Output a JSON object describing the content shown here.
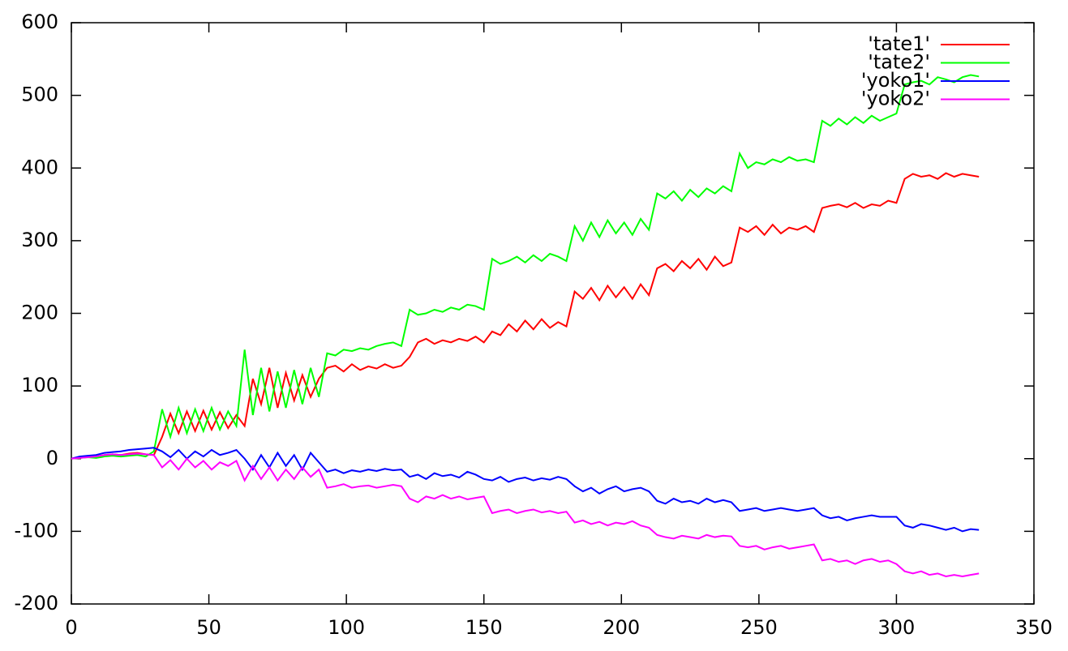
{
  "chart_data": {
    "type": "line",
    "x": [
      0,
      3,
      6,
      9,
      12,
      15,
      18,
      21,
      24,
      27,
      30,
      33,
      36,
      39,
      42,
      45,
      48,
      51,
      54,
      57,
      60,
      63,
      66,
      69,
      72,
      75,
      78,
      81,
      84,
      87,
      90,
      93,
      96,
      99,
      102,
      105,
      108,
      111,
      114,
      117,
      120,
      123,
      126,
      129,
      132,
      135,
      138,
      141,
      144,
      147,
      150,
      153,
      156,
      159,
      162,
      165,
      168,
      171,
      174,
      177,
      180,
      183,
      186,
      189,
      192,
      195,
      198,
      201,
      204,
      207,
      210,
      213,
      216,
      219,
      222,
      225,
      228,
      231,
      234,
      237,
      240,
      243,
      246,
      249,
      252,
      255,
      258,
      261,
      264,
      267,
      270,
      273,
      276,
      279,
      282,
      285,
      288,
      291,
      294,
      297,
      300,
      303,
      306,
      309,
      312,
      315,
      318,
      321,
      324,
      327,
      330
    ],
    "series": [
      {
        "name": "'tate1'",
        "color": "#ff0000",
        "values": [
          0,
          2,
          3,
          3,
          5,
          6,
          5,
          7,
          8,
          6,
          5,
          30,
          62,
          35,
          65,
          38,
          66,
          40,
          64,
          42,
          60,
          45,
          110,
          75,
          125,
          70,
          118,
          80,
          115,
          85,
          110,
          125,
          128,
          120,
          130,
          122,
          127,
          124,
          130,
          125,
          128,
          140,
          160,
          165,
          158,
          163,
          160,
          165,
          162,
          168,
          160,
          175,
          170,
          185,
          175,
          190,
          178,
          192,
          180,
          188,
          182,
          230,
          220,
          235,
          218,
          238,
          222,
          236,
          220,
          240,
          225,
          262,
          268,
          258,
          272,
          262,
          275,
          260,
          278,
          265,
          270,
          318,
          312,
          320,
          308,
          322,
          310,
          318,
          315,
          320,
          312,
          345,
          348,
          350,
          346,
          352,
          345,
          350,
          348,
          355,
          352,
          385,
          392,
          388,
          390,
          385,
          393,
          388,
          392,
          390,
          388
        ]
      },
      {
        "name": "'tate2'",
        "color": "#00ff00",
        "values": [
          0,
          1,
          2,
          1,
          3,
          4,
          3,
          4,
          5,
          3,
          10,
          68,
          30,
          70,
          35,
          68,
          38,
          70,
          40,
          65,
          45,
          150,
          60,
          125,
          65,
          120,
          70,
          122,
          75,
          125,
          85,
          145,
          142,
          150,
          148,
          152,
          150,
          155,
          158,
          160,
          155,
          205,
          198,
          200,
          205,
          202,
          208,
          205,
          212,
          210,
          205,
          275,
          268,
          272,
          278,
          270,
          280,
          272,
          282,
          278,
          272,
          320,
          300,
          325,
          305,
          328,
          310,
          325,
          308,
          330,
          315,
          365,
          358,
          368,
          355,
          370,
          360,
          372,
          365,
          375,
          368,
          420,
          400,
          408,
          405,
          412,
          408,
          415,
          410,
          412,
          408,
          465,
          458,
          468,
          460,
          470,
          462,
          472,
          465,
          470,
          475,
          515,
          518,
          520,
          515,
          525,
          522,
          518,
          525,
          528,
          526
        ]
      },
      {
        "name": "'yoko1'",
        "color": "#0000ff",
        "values": [
          0,
          3,
          4,
          5,
          8,
          9,
          10,
          12,
          13,
          14,
          15,
          10,
          2,
          12,
          0,
          10,
          3,
          12,
          5,
          8,
          12,
          0,
          -15,
          5,
          -12,
          8,
          -10,
          5,
          -15,
          8,
          -5,
          -18,
          -15,
          -20,
          -16,
          -18,
          -15,
          -17,
          -14,
          -16,
          -15,
          -25,
          -22,
          -28,
          -20,
          -24,
          -22,
          -26,
          -18,
          -22,
          -28,
          -30,
          -25,
          -32,
          -28,
          -26,
          -30,
          -27,
          -29,
          -25,
          -28,
          -38,
          -45,
          -40,
          -48,
          -42,
          -38,
          -45,
          -42,
          -40,
          -45,
          -58,
          -62,
          -55,
          -60,
          -58,
          -62,
          -55,
          -60,
          -57,
          -60,
          -72,
          -70,
          -68,
          -72,
          -70,
          -68,
          -70,
          -72,
          -70,
          -68,
          -78,
          -82,
          -80,
          -85,
          -82,
          -80,
          -78,
          -80,
          -80,
          -80,
          -92,
          -95,
          -90,
          -92,
          -95,
          -98,
          -95,
          -100,
          -97,
          -98
        ]
      },
      {
        "name": "'yoko2'",
        "color": "#ff00ff",
        "values": [
          0,
          1,
          2,
          3,
          5,
          6,
          5,
          6,
          7,
          6,
          5,
          -12,
          -2,
          -15,
          0,
          -12,
          -3,
          -15,
          -5,
          -10,
          -3,
          -30,
          -10,
          -28,
          -12,
          -30,
          -15,
          -28,
          -12,
          -25,
          -15,
          -40,
          -38,
          -35,
          -40,
          -38,
          -37,
          -40,
          -38,
          -36,
          -38,
          -55,
          -60,
          -52,
          -55,
          -50,
          -55,
          -52,
          -56,
          -54,
          -52,
          -75,
          -72,
          -70,
          -75,
          -72,
          -70,
          -74,
          -72,
          -75,
          -73,
          -88,
          -85,
          -90,
          -87,
          -92,
          -88,
          -90,
          -86,
          -92,
          -95,
          -105,
          -108,
          -110,
          -106,
          -108,
          -110,
          -105,
          -108,
          -106,
          -107,
          -120,
          -122,
          -120,
          -125,
          -122,
          -120,
          -124,
          -122,
          -120,
          -118,
          -140,
          -138,
          -142,
          -140,
          -145,
          -140,
          -138,
          -142,
          -140,
          -145,
          -155,
          -158,
          -155,
          -160,
          -158,
          -162,
          -160,
          -162,
          -160,
          -158
        ]
      }
    ],
    "xlim": [
      0,
      350
    ],
    "xticks": [
      0,
      50,
      100,
      150,
      200,
      250,
      300,
      350
    ],
    "ylim": [
      -200,
      600
    ],
    "yticks": [
      -200,
      -100,
      0,
      100,
      200,
      300,
      400,
      500,
      600
    ],
    "legend": "top-right"
  }
}
